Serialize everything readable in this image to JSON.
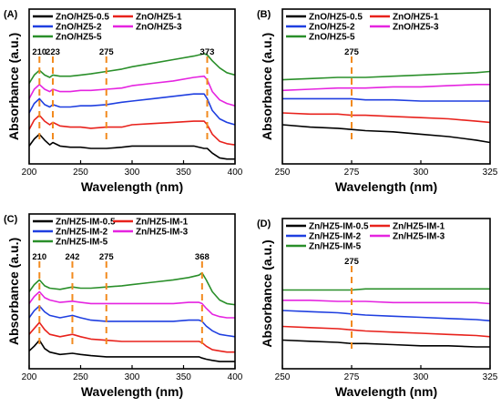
{
  "chart_data": [
    {
      "type": "line",
      "panel": "(A)",
      "xlabel": "Wavelength (nm)",
      "ylabel": "Absorbance (a.u.)",
      "xlim": [
        200,
        400
      ],
      "xticks": [
        200,
        250,
        300,
        350,
        400
      ],
      "legend": "top-left, two columns",
      "annotations": [
        {
          "x": 210,
          "label": "210"
        },
        {
          "x": 223,
          "label": "223"
        },
        {
          "x": 275,
          "label": "275"
        },
        {
          "x": 373,
          "label": "373"
        }
      ],
      "series": [
        {
          "name": "ZnO/HZ5-0.5",
          "color": "#000000",
          "x": [
            200,
            205,
            210,
            215,
            220,
            223,
            230,
            240,
            250,
            260,
            275,
            290,
            300,
            320,
            340,
            360,
            370,
            373,
            378,
            385,
            392,
            400
          ],
          "y": [
            0.12,
            0.18,
            0.22,
            0.17,
            0.13,
            0.15,
            0.12,
            0.11,
            0.11,
            0.1,
            0.1,
            0.11,
            0.12,
            0.12,
            0.12,
            0.12,
            0.1,
            0.1,
            0.06,
            0.02,
            0.01,
            0.01
          ]
        },
        {
          "name": "ZnO/HZ5-1",
          "color": "#e8221c",
          "x": [
            200,
            205,
            210,
            215,
            220,
            223,
            230,
            240,
            250,
            260,
            275,
            290,
            300,
            320,
            340,
            360,
            370,
            373,
            378,
            385,
            392,
            400
          ],
          "y": [
            0.26,
            0.34,
            0.38,
            0.33,
            0.3,
            0.32,
            0.29,
            0.28,
            0.28,
            0.27,
            0.28,
            0.28,
            0.3,
            0.31,
            0.32,
            0.33,
            0.33,
            0.3,
            0.22,
            0.16,
            0.14,
            0.13
          ]
        },
        {
          "name": "ZnO/HZ5-2",
          "color": "#1f3fe0",
          "x": [
            200,
            205,
            210,
            215,
            220,
            223,
            230,
            240,
            250,
            260,
            275,
            290,
            300,
            320,
            340,
            360,
            370,
            373,
            378,
            385,
            392,
            400
          ],
          "y": [
            0.4,
            0.48,
            0.52,
            0.47,
            0.45,
            0.47,
            0.45,
            0.45,
            0.46,
            0.46,
            0.47,
            0.49,
            0.5,
            0.52,
            0.54,
            0.56,
            0.56,
            0.52,
            0.42,
            0.35,
            0.32,
            0.3
          ]
        },
        {
          "name": "ZnO/HZ5-3",
          "color": "#e524e0",
          "x": [
            200,
            205,
            210,
            215,
            220,
            223,
            230,
            240,
            250,
            260,
            275,
            290,
            300,
            320,
            340,
            360,
            370,
            373,
            378,
            385,
            392,
            400
          ],
          "y": [
            0.52,
            0.6,
            0.64,
            0.6,
            0.58,
            0.6,
            0.58,
            0.58,
            0.59,
            0.59,
            0.6,
            0.61,
            0.63,
            0.65,
            0.67,
            0.7,
            0.71,
            0.68,
            0.58,
            0.51,
            0.48,
            0.46
          ]
        },
        {
          "name": "ZnO/HZ5-5",
          "color": "#2a8f2a",
          "x": [
            200,
            205,
            210,
            215,
            220,
            223,
            230,
            240,
            250,
            260,
            275,
            290,
            300,
            320,
            340,
            360,
            370,
            373,
            378,
            385,
            392,
            400
          ],
          "y": [
            0.65,
            0.72,
            0.76,
            0.72,
            0.7,
            0.72,
            0.71,
            0.71,
            0.72,
            0.73,
            0.75,
            0.77,
            0.79,
            0.82,
            0.85,
            0.88,
            0.9,
            0.89,
            0.84,
            0.78,
            0.74,
            0.72
          ]
        }
      ]
    },
    {
      "type": "line",
      "panel": "(B)",
      "xlabel": "Wavelength (nm)",
      "ylabel": "Absorbance (a.u.)",
      "xlim": [
        250,
        325
      ],
      "xticks": [
        250,
        275,
        300,
        325
      ],
      "legend": "top-left, two columns",
      "annotations": [
        {
          "x": 275,
          "label": "275"
        }
      ],
      "series": [
        {
          "name": "ZnO/HZ5-0.5",
          "color": "#000000",
          "x": [
            250,
            260,
            270,
            275,
            280,
            290,
            300,
            310,
            320,
            325
          ],
          "y": [
            0.3,
            0.28,
            0.27,
            0.26,
            0.25,
            0.24,
            0.22,
            0.2,
            0.17,
            0.15
          ]
        },
        {
          "name": "ZnO/HZ5-1",
          "color": "#e8221c",
          "x": [
            250,
            260,
            270,
            275,
            280,
            290,
            300,
            310,
            320,
            325
          ],
          "y": [
            0.4,
            0.39,
            0.39,
            0.38,
            0.38,
            0.37,
            0.36,
            0.35,
            0.33,
            0.32
          ]
        },
        {
          "name": "ZnO/HZ5-2",
          "color": "#1f3fe0",
          "x": [
            250,
            260,
            270,
            275,
            280,
            290,
            300,
            310,
            320,
            325
          ],
          "y": [
            0.52,
            0.52,
            0.52,
            0.52,
            0.51,
            0.51,
            0.5,
            0.5,
            0.5,
            0.5
          ]
        },
        {
          "name": "ZnO/HZ5-3",
          "color": "#e524e0",
          "x": [
            250,
            260,
            270,
            275,
            280,
            290,
            300,
            310,
            320,
            325
          ],
          "y": [
            0.59,
            0.6,
            0.61,
            0.61,
            0.61,
            0.62,
            0.62,
            0.63,
            0.64,
            0.64
          ]
        },
        {
          "name": "ZnO/HZ5-5",
          "color": "#2a8f2a",
          "x": [
            250,
            260,
            270,
            275,
            280,
            290,
            300,
            310,
            320,
            325
          ],
          "y": [
            0.68,
            0.69,
            0.7,
            0.7,
            0.7,
            0.71,
            0.72,
            0.73,
            0.74,
            0.75
          ]
        }
      ]
    },
    {
      "type": "line",
      "panel": "(C)",
      "xlabel": "Wavelength (nm)",
      "ylabel": "Absorbance (a.u.)",
      "xlim": [
        200,
        400
      ],
      "xticks": [
        200,
        250,
        300,
        350,
        400
      ],
      "legend": "top-left, two columns",
      "annotations": [
        {
          "x": 210,
          "label": "210"
        },
        {
          "x": 242,
          "label": "242"
        },
        {
          "x": 275,
          "label": "275"
        },
        {
          "x": 368,
          "label": "368"
        }
      ],
      "series": [
        {
          "name": "Zn/HZ5-IM-0.5",
          "color": "#000000",
          "x": [
            200,
            205,
            210,
            215,
            220,
            230,
            242,
            250,
            260,
            275,
            290,
            300,
            320,
            340,
            355,
            365,
            368,
            372,
            378,
            385,
            392,
            400
          ],
          "y": [
            0.12,
            0.16,
            0.21,
            0.14,
            0.11,
            0.09,
            0.1,
            0.09,
            0.08,
            0.07,
            0.07,
            0.07,
            0.07,
            0.07,
            0.07,
            0.07,
            0.06,
            0.05,
            0.04,
            0.03,
            0.03,
            0.03
          ]
        },
        {
          "name": "Zn/HZ5-IM-1",
          "color": "#e8221c",
          "x": [
            200,
            205,
            210,
            215,
            220,
            230,
            242,
            250,
            260,
            275,
            290,
            300,
            320,
            340,
            355,
            365,
            368,
            372,
            378,
            385,
            392,
            400
          ],
          "y": [
            0.26,
            0.31,
            0.36,
            0.3,
            0.26,
            0.24,
            0.26,
            0.24,
            0.22,
            0.21,
            0.2,
            0.2,
            0.2,
            0.2,
            0.2,
            0.2,
            0.19,
            0.16,
            0.13,
            0.12,
            0.11,
            0.11
          ]
        },
        {
          "name": "Zn/HZ5-IM-2",
          "color": "#1f3fe0",
          "x": [
            200,
            205,
            210,
            215,
            220,
            230,
            242,
            250,
            260,
            275,
            290,
            300,
            320,
            340,
            355,
            365,
            368,
            372,
            378,
            385,
            392,
            400
          ],
          "y": [
            0.4,
            0.46,
            0.5,
            0.45,
            0.42,
            0.4,
            0.42,
            0.4,
            0.38,
            0.37,
            0.37,
            0.37,
            0.37,
            0.37,
            0.38,
            0.38,
            0.37,
            0.33,
            0.29,
            0.26,
            0.25,
            0.24
          ]
        },
        {
          "name": "Zn/HZ5-IM-3",
          "color": "#e524e0",
          "x": [
            200,
            205,
            210,
            215,
            220,
            230,
            242,
            250,
            260,
            275,
            290,
            300,
            320,
            340,
            355,
            365,
            368,
            372,
            378,
            385,
            392,
            400
          ],
          "y": [
            0.52,
            0.58,
            0.62,
            0.57,
            0.55,
            0.53,
            0.54,
            0.53,
            0.52,
            0.52,
            0.52,
            0.52,
            0.52,
            0.52,
            0.53,
            0.53,
            0.52,
            0.48,
            0.43,
            0.41,
            0.4,
            0.4
          ]
        },
        {
          "name": "Zn/HZ5-IM-5",
          "color": "#2a8f2a",
          "x": [
            200,
            205,
            210,
            215,
            220,
            230,
            242,
            250,
            260,
            275,
            290,
            300,
            320,
            340,
            355,
            365,
            368,
            372,
            378,
            385,
            392,
            400
          ],
          "y": [
            0.62,
            0.68,
            0.72,
            0.67,
            0.65,
            0.64,
            0.66,
            0.65,
            0.65,
            0.66,
            0.67,
            0.68,
            0.7,
            0.72,
            0.74,
            0.76,
            0.78,
            0.72,
            0.62,
            0.55,
            0.52,
            0.51
          ]
        }
      ]
    },
    {
      "type": "line",
      "panel": "(D)",
      "xlabel": "Wavelength (nm)",
      "ylabel": "Absorbance (a.u.)",
      "xlim": [
        250,
        325
      ],
      "xticks": [
        250,
        275,
        300,
        325
      ],
      "legend": "top-left, two columns",
      "annotations": [
        {
          "x": 275,
          "label": "275"
        }
      ],
      "series": [
        {
          "name": "Zn/HZ5-IM-0.5",
          "color": "#000000",
          "x": [
            250,
            260,
            270,
            275,
            280,
            290,
            300,
            310,
            320,
            325
          ],
          "y": [
            0.22,
            0.21,
            0.2,
            0.19,
            0.19,
            0.18,
            0.17,
            0.17,
            0.16,
            0.16
          ]
        },
        {
          "name": "Zn/HZ5-IM-1",
          "color": "#e8221c",
          "x": [
            250,
            260,
            270,
            275,
            280,
            290,
            300,
            310,
            320,
            325
          ],
          "y": [
            0.34,
            0.33,
            0.32,
            0.31,
            0.3,
            0.29,
            0.28,
            0.27,
            0.26,
            0.25
          ]
        },
        {
          "name": "Zn/HZ5-IM-2",
          "color": "#1f3fe0",
          "x": [
            250,
            260,
            270,
            275,
            280,
            290,
            300,
            310,
            320,
            325
          ],
          "y": [
            0.48,
            0.47,
            0.46,
            0.45,
            0.44,
            0.43,
            0.42,
            0.41,
            0.4,
            0.39
          ]
        },
        {
          "name": "Zn/HZ5-IM-3",
          "color": "#e524e0",
          "x": [
            250,
            260,
            270,
            275,
            280,
            290,
            300,
            310,
            320,
            325
          ],
          "y": [
            0.57,
            0.57,
            0.56,
            0.56,
            0.56,
            0.55,
            0.55,
            0.55,
            0.55,
            0.54
          ]
        },
        {
          "name": "Zn/HZ5-IM-5",
          "color": "#2a8f2a",
          "x": [
            250,
            260,
            270,
            275,
            280,
            290,
            300,
            310,
            320,
            325
          ],
          "y": [
            0.66,
            0.66,
            0.66,
            0.66,
            0.67,
            0.67,
            0.67,
            0.67,
            0.67,
            0.67
          ]
        }
      ]
    }
  ],
  "annotation_color": "#f28a1e"
}
